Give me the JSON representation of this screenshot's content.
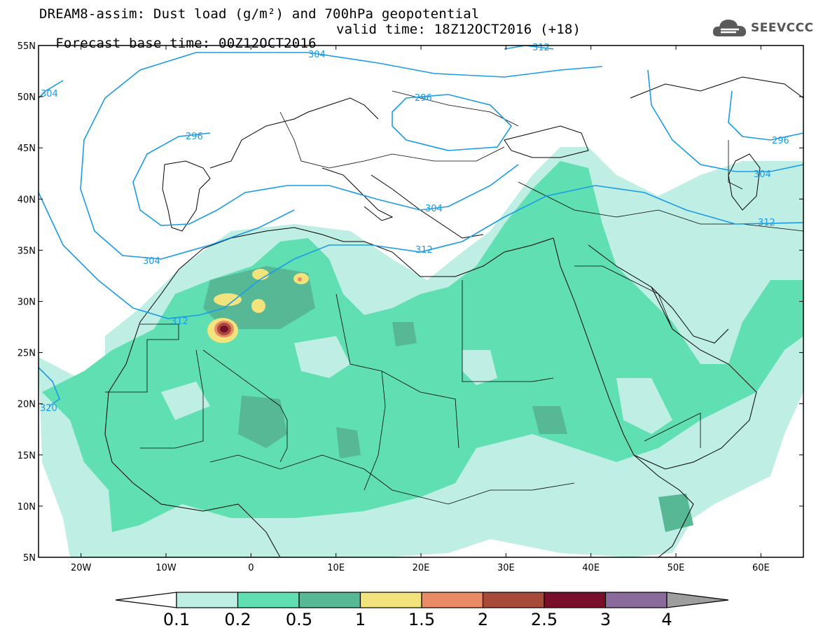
{
  "header": {
    "title_line1": "DREAM8-assim: Dust load (g/m²) and 700hPa geopotential",
    "title_line2_base": "Forecast base time: 00Z12OCT2016",
    "title_line2_valid": "valid time: 18Z12OCT2016 (+18)",
    "logo_text": "SEEVCCC",
    "logo_icon": "cloud-logo-icon"
  },
  "map": {
    "lon_range": [
      -25,
      65
    ],
    "lat_range": [
      5,
      55
    ],
    "lat_labels": [
      "55N",
      "50N",
      "45N",
      "40N",
      "35N",
      "30N",
      "25N",
      "20N",
      "15N",
      "10N",
      "5N"
    ],
    "lon_labels": [
      "20W",
      "10W",
      "0",
      "10E",
      "20E",
      "30E",
      "40E",
      "50E",
      "60E"
    ],
    "contour_labels": [
      "304",
      "312",
      "296",
      "304",
      "296",
      "312",
      "304",
      "296",
      "304",
      "312",
      "304",
      "312",
      "320"
    ],
    "contour_color": "#1a9be6"
  },
  "colorbar": {
    "labels": [
      "0.1",
      "0.2",
      "0.5",
      "1",
      "1.5",
      "2",
      "2.5",
      "3",
      "4"
    ],
    "colors": [
      "#bfeee5",
      "#5fdfb2",
      "#56b894",
      "#f3e37c",
      "#e98c66",
      "#a84a3a",
      "#7a0f2c",
      "#8b6a9c",
      "#9e9e9e"
    ]
  }
}
